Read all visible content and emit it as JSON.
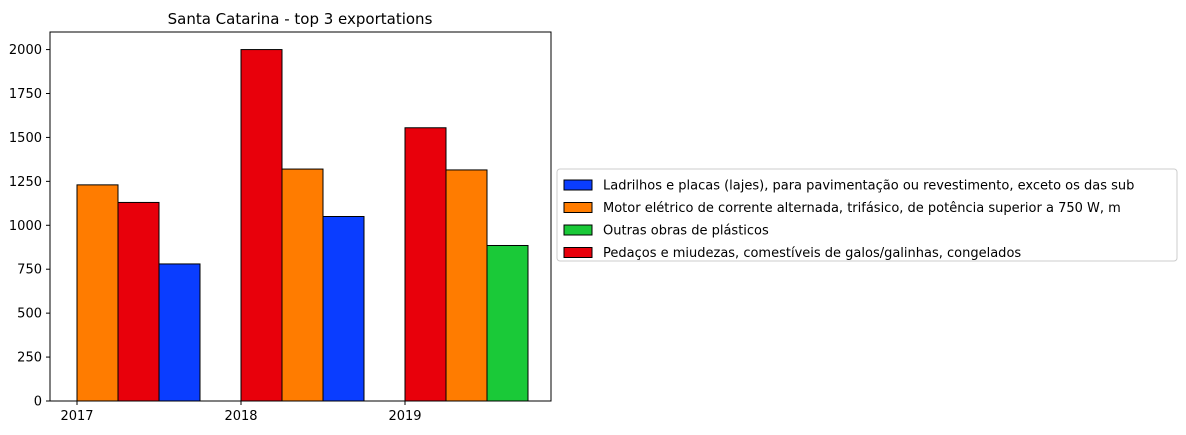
{
  "chart_data": {
    "type": "bar",
    "title": "Santa Catarina - top 3 exportations",
    "xlabel": "",
    "ylabel": "",
    "ylim": [
      0,
      2100
    ],
    "yticks": [
      0,
      250,
      500,
      750,
      1000,
      1250,
      1500,
      1750,
      2000
    ],
    "legend_position": "right",
    "grid": false,
    "years": [
      "2017",
      "2018",
      "2019"
    ],
    "legend": [
      {
        "name": "Ladrilhos e placas (lajes), para pavimentação ou revestimento, exceto os das sub",
        "color": "#0a3dff"
      },
      {
        "name": "Motor elétrico de corrente alternada, trifásico, de potência superior a 750 W, m",
        "color": "#ff7c00"
      },
      {
        "name": "Outras obras de plásticos",
        "color": "#1ac938"
      },
      {
        "name": "Pedaços e miudezas, comestíveis de galos/galinhas, congelados",
        "color": "#e8000b"
      }
    ],
    "groups": [
      {
        "year": "2017",
        "bars": [
          {
            "series": "Motor elétrico de corrente alternada, trifásico, de potência superior a 750 W, m",
            "value": 1230
          },
          {
            "series": "Pedaços e miudezas, comestíveis de galos/galinhas, congelados",
            "value": 1130
          },
          {
            "series": "Ladrilhos e placas (lajes), para pavimentação ou revestimento, exceto os das sub",
            "value": 780
          }
        ]
      },
      {
        "year": "2018",
        "bars": [
          {
            "series": "Pedaços e miudezas, comestíveis de galos/galinhas, congelados",
            "value": 2000
          },
          {
            "series": "Motor elétrico de corrente alternada, trifásico, de potência superior a 750 W, m",
            "value": 1320
          },
          {
            "series": "Ladrilhos e placas (lajes), para pavimentação ou revestimento, exceto os das sub",
            "value": 1050
          }
        ]
      },
      {
        "year": "2019",
        "bars": [
          {
            "series": "Pedaços e miudezas, comestíveis de galos/galinhas, congelados",
            "value": 1555
          },
          {
            "series": "Motor elétrico de corrente alternada, trifásico, de potência superior a 750 W, m",
            "value": 1315
          },
          {
            "series": "Outras obras de plásticos",
            "value": 885
          }
        ]
      }
    ]
  }
}
